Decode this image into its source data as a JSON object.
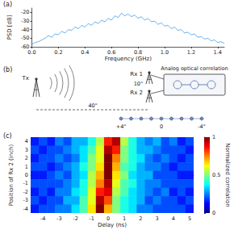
{
  "chart_data": [
    {
      "type": "line",
      "title": "(a)",
      "xlabel": "Frequency (GHz)",
      "ylabel": "PSD [dB]",
      "color": "#2b8fe0",
      "grid": false,
      "x": [
        0.0,
        0.025,
        0.05,
        0.075,
        0.1,
        0.125,
        0.15,
        0.175,
        0.2,
        0.225,
        0.25,
        0.275,
        0.3,
        0.325,
        0.35,
        0.375,
        0.4,
        0.425,
        0.45,
        0.475,
        0.5,
        0.525,
        0.55,
        0.575,
        0.6,
        0.625,
        0.65,
        0.675,
        0.7,
        0.725,
        0.75,
        0.775,
        0.8,
        0.825,
        0.85,
        0.875,
        0.9,
        0.925,
        0.95,
        0.975,
        1.0,
        1.025,
        1.05,
        1.075,
        1.1,
        1.125,
        1.15,
        1.175,
        1.2,
        1.225,
        1.25,
        1.275,
        1.3,
        1.325,
        1.35,
        1.375,
        1.4,
        1.425,
        1.45
      ],
      "values": [
        -57,
        -55,
        -54,
        -52,
        -50,
        -47,
        -49,
        -45,
        -46,
        -42,
        -44,
        -40,
        -41,
        -37,
        -39,
        -35,
        -37,
        -33,
        -35,
        -31,
        -33,
        -29,
        -31,
        -27,
        -29,
        -24,
        -26,
        -21,
        -24,
        -22,
        -25,
        -23,
        -27,
        -25,
        -29,
        -27,
        -31,
        -30,
        -34,
        -32,
        -36,
        -35,
        -39,
        -37,
        -41,
        -40,
        -44,
        -43,
        -46,
        -45,
        -49,
        -48,
        -51,
        -50,
        -53,
        -52,
        -55,
        -54,
        -56
      ],
      "xlim": [
        0,
        1.45
      ],
      "xticks": [
        {
          "value": 0,
          "label": "0.0"
        },
        0.2,
        0.4,
        0.6,
        0.8,
        {
          "value": 1,
          "label": "1.0"
        },
        1.2,
        1.4
      ],
      "ylim": [
        -60,
        -15
      ],
      "yticks": [
        -60,
        -50,
        -40,
        -30,
        -20
      ]
    },
    {
      "type": "heatmap",
      "title": "(c)",
      "xlabel": "Delay (ns)",
      "ylabel": "Position of Rx 2 (inch)",
      "grid": false,
      "x": [
        -4.5,
        -4,
        -3.5,
        -3,
        -2.5,
        -2,
        -1.5,
        -1,
        -0.5,
        0,
        0.5,
        1,
        1.5,
        2,
        2.5,
        3,
        3.5,
        4,
        4.5,
        5
      ],
      "y": [
        4,
        3,
        2,
        1,
        0,
        -1,
        -2,
        -3,
        -4
      ],
      "values": [
        [
          0.15,
          0.2,
          0.15,
          0.25,
          0.2,
          0.3,
          0.3,
          0.4,
          0.55,
          0.85,
          0.95,
          0.55,
          0.4,
          0.3,
          0.25,
          0.3,
          0.2,
          0.25,
          0.15,
          0.2
        ],
        [
          0.2,
          0.15,
          0.2,
          0.2,
          0.25,
          0.3,
          0.35,
          0.45,
          0.6,
          0.95,
          0.85,
          0.5,
          0.4,
          0.3,
          0.3,
          0.25,
          0.2,
          0.2,
          0.2,
          0.15
        ],
        [
          0.15,
          0.2,
          0.2,
          0.25,
          0.2,
          0.25,
          0.35,
          0.5,
          0.6,
          1.0,
          0.75,
          0.5,
          0.4,
          0.35,
          0.25,
          0.2,
          0.25,
          0.2,
          0.15,
          0.2
        ],
        [
          0.2,
          0.2,
          0.15,
          0.2,
          0.25,
          0.3,
          0.4,
          0.5,
          0.65,
          1.0,
          0.7,
          0.45,
          0.4,
          0.3,
          0.25,
          0.25,
          0.2,
          0.15,
          0.2,
          0.2
        ],
        [
          0.15,
          0.15,
          0.2,
          0.25,
          0.2,
          0.3,
          0.35,
          0.55,
          0.7,
          1.0,
          0.65,
          0.5,
          0.35,
          0.3,
          0.3,
          0.2,
          0.2,
          0.2,
          0.15,
          0.15
        ],
        [
          0.2,
          0.2,
          0.2,
          0.2,
          0.25,
          0.3,
          0.4,
          0.55,
          0.75,
          0.95,
          0.6,
          0.45,
          0.4,
          0.3,
          0.25,
          0.25,
          0.2,
          0.2,
          0.2,
          0.2
        ],
        [
          0.15,
          0.2,
          0.15,
          0.25,
          0.25,
          0.35,
          0.4,
          0.6,
          0.85,
          0.9,
          0.55,
          0.45,
          0.35,
          0.3,
          0.25,
          0.2,
          0.25,
          0.15,
          0.2,
          0.15
        ],
        [
          0.2,
          0.15,
          0.2,
          0.2,
          0.3,
          0.3,
          0.45,
          0.6,
          0.95,
          0.8,
          0.5,
          0.4,
          0.35,
          0.3,
          0.2,
          0.25,
          0.2,
          0.2,
          0.15,
          0.2
        ],
        [
          0.15,
          0.2,
          0.2,
          0.25,
          0.25,
          0.35,
          0.45,
          0.65,
          1.0,
          0.7,
          0.5,
          0.4,
          0.35,
          0.25,
          0.25,
          0.2,
          0.2,
          0.2,
          0.2,
          0.15
        ]
      ],
      "xlim": [
        -4.75,
        5.25
      ],
      "xticks": [
        -4,
        -3,
        -2,
        -1,
        0,
        1,
        2,
        3,
        4,
        5
      ],
      "ylim": [
        -4.5,
        4.5
      ],
      "yticks": [
        -4,
        -3,
        -2,
        -1,
        0,
        1,
        2,
        3,
        4
      ],
      "colorbar": {
        "label": "Normalized correlation",
        "range": [
          0,
          1
        ],
        "ticks": [
          0,
          0.5,
          1
        ]
      }
    }
  ],
  "diagram": {
    "label": "(b)",
    "transmitter": "Tx",
    "receivers": [
      "Rx 1",
      "Rx 2"
    ],
    "receiver_spacing": "10\"",
    "distance": "40\"",
    "box": "Analog optical correlation",
    "positions": [
      "+4\"",
      "0",
      "-4\""
    ]
  }
}
